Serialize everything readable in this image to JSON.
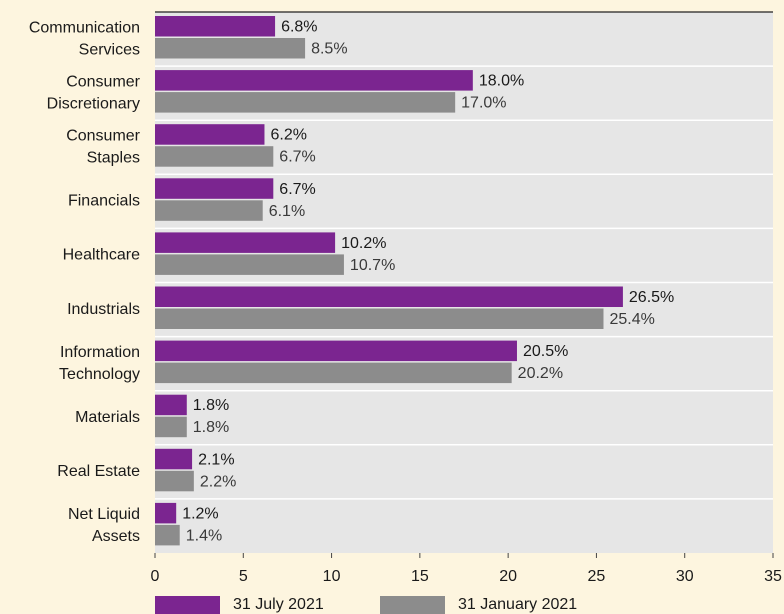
{
  "chart_data": {
    "type": "bar",
    "orientation": "horizontal",
    "categories": [
      [
        "Communication",
        "Services"
      ],
      [
        "Consumer",
        "Discretionary"
      ],
      [
        "Consumer",
        "Staples"
      ],
      [
        "Financials"
      ],
      [
        "Healthcare"
      ],
      [
        "Industrials"
      ],
      [
        "Information",
        "Technology"
      ],
      [
        "Materials"
      ],
      [
        "Real Estate"
      ],
      [
        "Net Liquid",
        "Assets"
      ]
    ],
    "series": [
      {
        "name": "31 July 2021",
        "color": "#7b2590",
        "values": [
          6.8,
          18.0,
          6.2,
          6.7,
          10.2,
          26.5,
          20.5,
          1.8,
          2.1,
          1.2
        ],
        "value_labels": [
          "6.8%",
          "18.0%",
          "6.2%",
          "6.7%",
          "10.2%",
          "26.5%",
          "20.5%",
          "1.8%",
          "2.1%",
          "1.2%"
        ]
      },
      {
        "name": "31 January 2021",
        "color": "#8c8c8c",
        "values": [
          8.5,
          17.0,
          6.7,
          6.1,
          10.7,
          25.4,
          20.2,
          1.8,
          2.2,
          1.4
        ],
        "value_labels": [
          "8.5%",
          "17.0%",
          "6.7%",
          "6.1%",
          "10.7%",
          "25.4%",
          "20.2%",
          "1.8%",
          "2.2%",
          "1.4%"
        ]
      }
    ],
    "xlim": [
      0,
      35
    ],
    "xticks": [
      0,
      5,
      10,
      15,
      20,
      25,
      30,
      35
    ],
    "legend": "bottom"
  }
}
